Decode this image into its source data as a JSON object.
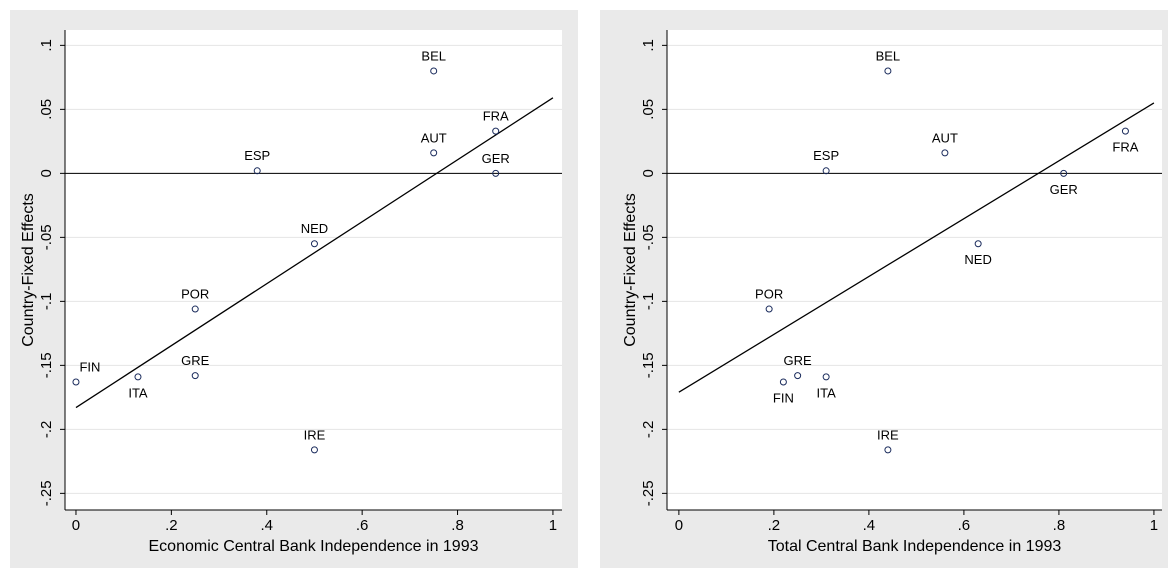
{
  "chart_data": [
    {
      "type": "scatter",
      "xlabel": "Economic Central Bank Independence in 1993",
      "ylabel": "Country-Fixed Effects",
      "xlim": [
        -0.023,
        1.019
      ],
      "ylim": [
        -0.263,
        0.112
      ],
      "xticks": [
        0,
        {
          "value": 0.2,
          "label": ".2"
        },
        {
          "value": 0.4,
          "label": ".4"
        },
        {
          "value": 0.6,
          "label": ".6"
        },
        {
          "value": 0.8,
          "label": ".8"
        },
        1
      ],
      "yticks": [
        {
          "value": 0.1,
          "label": ".1"
        },
        {
          "value": 0.05,
          "label": ".05"
        },
        0,
        {
          "value": -0.05,
          "label": "-.05"
        },
        {
          "value": -0.1,
          "label": "-.1"
        },
        {
          "value": -0.15,
          "label": "-.15"
        },
        {
          "value": -0.2,
          "label": "-.2"
        },
        {
          "value": -0.25,
          "label": "-.25"
        }
      ],
      "grid": true,
      "hline": 0,
      "series": [
        {
          "color": "#1a2b5c",
          "labels": [
            "FIN",
            "ITA",
            "GRE",
            "POR",
            "ESP",
            "NED",
            "IRE",
            "BEL",
            "AUT",
            "FRA",
            "GER"
          ],
          "x": [
            0,
            0.13,
            0.25,
            0.25,
            0.38,
            0.5,
            0.5,
            0.75,
            0.75,
            0.88,
            0.88
          ],
          "values": [
            -0.163,
            -0.159,
            -0.158,
            -0.106,
            0.002,
            -0.055,
            -0.216,
            0.08,
            0.016,
            0.033,
            0.0
          ]
        }
      ],
      "fit": {
        "color": "#000000",
        "x": [
          0,
          1
        ],
        "values": [
          -0.183,
          0.059
        ]
      }
    },
    {
      "type": "scatter",
      "xlabel": "Total Central Bank Independence in 1993",
      "ylabel": "Country-Fixed Effects",
      "xlim": [
        -0.025,
        1.017
      ],
      "ylim": [
        -0.263,
        0.112
      ],
      "xticks": [
        0,
        {
          "value": 0.2,
          "label": ".2"
        },
        {
          "value": 0.4,
          "label": ".4"
        },
        {
          "value": 0.6,
          "label": ".6"
        },
        {
          "value": 0.8,
          "label": ".8"
        },
        1
      ],
      "yticks": [
        {
          "value": 0.1,
          "label": ".1"
        },
        {
          "value": 0.05,
          "label": ".05"
        },
        0,
        {
          "value": -0.05,
          "label": "-.05"
        },
        {
          "value": -0.1,
          "label": "-.1"
        },
        {
          "value": -0.15,
          "label": "-.15"
        },
        {
          "value": -0.2,
          "label": "-.2"
        },
        {
          "value": -0.25,
          "label": "-.25"
        }
      ],
      "grid": true,
      "hline": 0,
      "series": [
        {
          "color": "#1a2b5c",
          "labels": [
            "FIN",
            "GRE",
            "ITA",
            "POR",
            "ESP",
            "IRE",
            "BEL",
            "AUT",
            "NED",
            "GER",
            "FRA"
          ],
          "x": [
            0.22,
            0.25,
            0.31,
            0.19,
            0.31,
            0.44,
            0.44,
            0.56,
            0.63,
            0.81,
            0.94
          ],
          "values": [
            -0.163,
            -0.158,
            -0.159,
            -0.106,
            0.002,
            -0.216,
            0.08,
            0.016,
            -0.055,
            0.0,
            0.033
          ]
        }
      ],
      "fit": {
        "color": "#000000",
        "x": [
          0,
          1
        ],
        "values": [
          -0.171,
          0.055
        ]
      }
    }
  ]
}
